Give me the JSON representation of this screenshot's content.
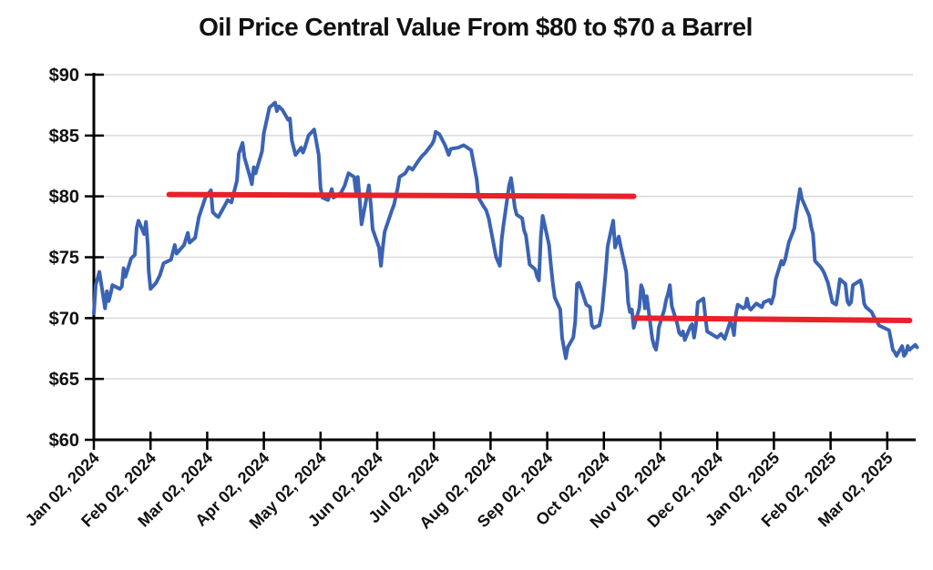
{
  "chart_data": {
    "type": "line",
    "title": "Oil Price Central Value From $80 to $70 a Barrel",
    "xlabel": "",
    "ylabel": "",
    "grid": true,
    "legend": false,
    "colors": {
      "series_blue": "#3b63b4",
      "reference_red": "#e8212b",
      "axis": "#000000",
      "gridline": "#d9d9d9",
      "text": "#111111",
      "background": "#ffffff"
    },
    "y_axis": {
      "min": 60,
      "max": 90,
      "tick_step": 5,
      "tick_labels": [
        "$60",
        "$65",
        "$70",
        "$75",
        "$80",
        "$85",
        "$90"
      ]
    },
    "x_axis": {
      "rotation_deg": -45,
      "tick_labels": [
        "Jan 02, 2024",
        "Feb 02, 2024",
        "Mar 02, 2024",
        "Apr 02, 2024",
        "May 02, 2024",
        "Jun 02, 2024",
        "Jul 02, 2024",
        "Aug 02, 2024",
        "Sep 02, 2024",
        "Oct 02, 2024",
        "Nov 02, 2024",
        "Dec 02, 2024",
        "Jan 02, 2025",
        "Feb 02, 2025",
        "Mar 02, 2025"
      ]
    },
    "reference_lines": [
      {
        "name": "central-value-80",
        "value_start": 80.15,
        "value_end": 80.0,
        "from": "2024-02-12",
        "to": "2024-10-18",
        "color": "#e8212b"
      },
      {
        "name": "central-value-70",
        "value_start": 70.0,
        "value_end": 69.8,
        "from": "2024-10-19",
        "to": "2025-03-14",
        "color": "#e8212b"
      }
    ],
    "series": [
      {
        "name": "oil-price",
        "color": "#3b63b4",
        "points": [
          [
            "2024-01-02",
            70.4
          ],
          [
            "2024-01-03",
            72.7
          ],
          [
            "2024-01-05",
            73.8
          ],
          [
            "2024-01-08",
            70.8
          ],
          [
            "2024-01-09",
            72.2
          ],
          [
            "2024-01-10",
            71.4
          ],
          [
            "2024-01-11",
            72.0
          ],
          [
            "2024-01-12",
            72.7
          ],
          [
            "2024-01-16",
            72.4
          ],
          [
            "2024-01-17",
            72.6
          ],
          [
            "2024-01-18",
            74.1
          ],
          [
            "2024-01-19",
            73.4
          ],
          [
            "2024-01-22",
            74.9
          ],
          [
            "2024-01-24",
            75.2
          ],
          [
            "2024-01-25",
            77.4
          ],
          [
            "2024-01-26",
            78.0
          ],
          [
            "2024-01-29",
            76.9
          ],
          [
            "2024-01-30",
            77.9
          ],
          [
            "2024-01-31",
            75.9
          ],
          [
            "2024-02-01",
            73.9
          ],
          [
            "2024-02-02",
            72.4
          ],
          [
            "2024-02-05",
            72.9
          ],
          [
            "2024-02-07",
            73.5
          ],
          [
            "2024-02-08",
            74.0
          ],
          [
            "2024-02-09",
            74.5
          ],
          [
            "2024-02-13",
            74.8
          ],
          [
            "2024-02-14",
            75.4
          ],
          [
            "2024-02-15",
            76.0
          ],
          [
            "2024-02-16",
            75.3
          ],
          [
            "2024-02-20",
            76.0
          ],
          [
            "2024-02-22",
            77.0
          ],
          [
            "2024-02-23",
            76.2
          ],
          [
            "2024-02-26",
            76.6
          ],
          [
            "2024-02-27",
            77.5
          ],
          [
            "2024-02-28",
            78.3
          ],
          [
            "2024-03-01",
            79.9
          ],
          [
            "2024-03-04",
            80.5
          ],
          [
            "2024-03-05",
            78.7
          ],
          [
            "2024-03-07",
            78.4
          ],
          [
            "2024-03-08",
            78.3
          ],
          [
            "2024-03-12",
            79.4
          ],
          [
            "2024-03-13",
            79.7
          ],
          [
            "2024-03-15",
            79.5
          ],
          [
            "2024-03-18",
            81.3
          ],
          [
            "2024-03-19",
            83.5
          ],
          [
            "2024-03-21",
            84.4
          ],
          [
            "2024-03-22",
            83.2
          ],
          [
            "2024-03-25",
            81.6
          ],
          [
            "2024-03-26",
            81.0
          ],
          [
            "2024-03-27",
            82.4
          ],
          [
            "2024-03-28",
            81.9
          ],
          [
            "2024-04-01",
            83.7
          ],
          [
            "2024-04-02",
            85.2
          ],
          [
            "2024-04-04",
            86.6
          ],
          [
            "2024-04-05",
            87.3
          ],
          [
            "2024-04-08",
            87.7
          ],
          [
            "2024-04-09",
            87.0
          ],
          [
            "2024-04-10",
            87.4
          ],
          [
            "2024-04-12",
            87.1
          ],
          [
            "2024-04-15",
            86.3
          ],
          [
            "2024-04-16",
            86.4
          ],
          [
            "2024-04-17",
            84.6
          ],
          [
            "2024-04-19",
            83.4
          ],
          [
            "2024-04-22",
            84.0
          ],
          [
            "2024-04-23",
            83.6
          ],
          [
            "2024-04-24",
            84.0
          ],
          [
            "2024-04-26",
            85.0
          ],
          [
            "2024-04-29",
            85.5
          ],
          [
            "2024-05-01",
            83.4
          ],
          [
            "2024-05-02",
            80.7
          ],
          [
            "2024-05-03",
            79.9
          ],
          [
            "2024-05-06",
            79.7
          ],
          [
            "2024-05-08",
            80.6
          ],
          [
            "2024-05-09",
            79.9
          ],
          [
            "2024-05-13",
            80.3
          ],
          [
            "2024-05-15",
            80.9
          ],
          [
            "2024-05-16",
            81.4
          ],
          [
            "2024-05-17",
            81.9
          ],
          [
            "2024-05-20",
            81.6
          ],
          [
            "2024-05-21",
            80.4
          ],
          [
            "2024-05-22",
            81.6
          ],
          [
            "2024-05-23",
            79.8
          ],
          [
            "2024-05-24",
            77.7
          ],
          [
            "2024-05-28",
            80.9
          ],
          [
            "2024-05-29",
            79.3
          ],
          [
            "2024-05-30",
            77.3
          ],
          [
            "2024-06-03",
            75.8
          ],
          [
            "2024-06-04",
            74.3
          ],
          [
            "2024-06-05",
            75.8
          ],
          [
            "2024-06-06",
            77.1
          ],
          [
            "2024-06-10",
            78.9
          ],
          [
            "2024-06-11",
            79.3
          ],
          [
            "2024-06-13",
            80.7
          ],
          [
            "2024-06-14",
            81.6
          ],
          [
            "2024-06-17",
            81.9
          ],
          [
            "2024-06-19",
            82.4
          ],
          [
            "2024-06-21",
            82.2
          ],
          [
            "2024-06-24",
            82.9
          ],
          [
            "2024-06-26",
            83.3
          ],
          [
            "2024-06-28",
            83.6
          ],
          [
            "2024-07-01",
            84.3
          ],
          [
            "2024-07-02",
            84.6
          ],
          [
            "2024-07-03",
            85.3
          ],
          [
            "2024-07-05",
            85.1
          ],
          [
            "2024-07-08",
            84.2
          ],
          [
            "2024-07-09",
            83.8
          ],
          [
            "2024-07-10",
            83.4
          ],
          [
            "2024-07-11",
            83.9
          ],
          [
            "2024-07-15",
            84.0
          ],
          [
            "2024-07-18",
            84.2
          ],
          [
            "2024-07-22",
            83.8
          ],
          [
            "2024-07-25",
            81.4
          ],
          [
            "2024-07-26",
            79.9
          ],
          [
            "2024-07-29",
            79.1
          ],
          [
            "2024-07-30",
            78.9
          ],
          [
            "2024-08-01",
            78.2
          ],
          [
            "2024-08-02",
            77.4
          ],
          [
            "2024-08-05",
            75.0
          ],
          [
            "2024-08-07",
            74.3
          ],
          [
            "2024-08-08",
            76.5
          ],
          [
            "2024-08-09",
            77.7
          ],
          [
            "2024-08-12",
            80.9
          ],
          [
            "2024-08-13",
            81.5
          ],
          [
            "2024-08-14",
            80.4
          ],
          [
            "2024-08-15",
            79.1
          ],
          [
            "2024-08-16",
            78.5
          ],
          [
            "2024-08-19",
            78.2
          ],
          [
            "2024-08-20",
            77.2
          ],
          [
            "2024-08-21",
            76.8
          ],
          [
            "2024-08-22",
            75.6
          ],
          [
            "2024-08-23",
            74.4
          ],
          [
            "2024-08-26",
            74.0
          ],
          [
            "2024-08-27",
            73.4
          ],
          [
            "2024-08-28",
            73.1
          ],
          [
            "2024-08-29",
            76.7
          ],
          [
            "2024-08-30",
            78.4
          ],
          [
            "2024-09-03",
            76.0
          ],
          [
            "2024-09-04",
            74.3
          ],
          [
            "2024-09-05",
            72.9
          ],
          [
            "2024-09-06",
            71.7
          ],
          [
            "2024-09-09",
            70.7
          ],
          [
            "2024-09-10",
            68.4
          ],
          [
            "2024-09-12",
            66.7
          ],
          [
            "2024-09-13",
            67.6
          ],
          [
            "2024-09-16",
            68.4
          ],
          [
            "2024-09-17",
            69.7
          ],
          [
            "2024-09-18",
            72.8
          ],
          [
            "2024-09-19",
            72.9
          ],
          [
            "2024-09-20",
            72.5
          ],
          [
            "2024-09-23",
            71.1
          ],
          [
            "2024-09-25",
            70.9
          ],
          [
            "2024-09-26",
            69.4
          ],
          [
            "2024-09-27",
            69.2
          ],
          [
            "2024-09-30",
            69.4
          ],
          [
            "2024-10-01",
            70.6
          ],
          [
            "2024-10-03",
            73.8
          ],
          [
            "2024-10-04",
            75.9
          ],
          [
            "2024-10-07",
            78.0
          ],
          [
            "2024-10-08",
            75.8
          ],
          [
            "2024-10-10",
            76.7
          ],
          [
            "2024-10-11",
            75.9
          ],
          [
            "2024-10-14",
            73.8
          ],
          [
            "2024-10-15",
            71.3
          ],
          [
            "2024-10-16",
            70.5
          ],
          [
            "2024-10-17",
            70.7
          ],
          [
            "2024-10-18",
            69.2
          ],
          [
            "2024-10-21",
            70.8
          ],
          [
            "2024-10-22",
            72.7
          ],
          [
            "2024-10-23",
            72.3
          ],
          [
            "2024-10-24",
            70.8
          ],
          [
            "2024-10-25",
            71.8
          ],
          [
            "2024-10-28",
            68.3
          ],
          [
            "2024-10-29",
            67.7
          ],
          [
            "2024-10-30",
            67.4
          ],
          [
            "2024-10-31",
            68.4
          ],
          [
            "2024-11-01",
            69.2
          ],
          [
            "2024-11-04",
            70.7
          ],
          [
            "2024-11-05",
            71.5
          ],
          [
            "2024-11-06",
            72.0
          ],
          [
            "2024-11-07",
            72.7
          ],
          [
            "2024-11-08",
            71.0
          ],
          [
            "2024-11-11",
            69.5
          ],
          [
            "2024-11-12",
            68.8
          ],
          [
            "2024-11-13",
            68.6
          ],
          [
            "2024-11-14",
            68.9
          ],
          [
            "2024-11-15",
            68.2
          ],
          [
            "2024-11-18",
            69.3
          ],
          [
            "2024-11-19",
            69.5
          ],
          [
            "2024-11-20",
            68.4
          ],
          [
            "2024-11-21",
            69.4
          ],
          [
            "2024-11-22",
            71.3
          ],
          [
            "2024-11-25",
            71.6
          ],
          [
            "2024-11-26",
            70.2
          ],
          [
            "2024-11-27",
            68.9
          ],
          [
            "2024-12-02",
            68.4
          ],
          [
            "2024-12-04",
            68.7
          ],
          [
            "2024-12-06",
            68.3
          ],
          [
            "2024-12-09",
            69.7
          ],
          [
            "2024-12-10",
            69.4
          ],
          [
            "2024-12-11",
            68.6
          ],
          [
            "2024-12-12",
            70.3
          ],
          [
            "2024-12-13",
            71.1
          ],
          [
            "2024-12-16",
            70.8
          ],
          [
            "2024-12-17",
            70.9
          ],
          [
            "2024-12-18",
            71.6
          ],
          [
            "2024-12-19",
            70.9
          ],
          [
            "2024-12-20",
            70.7
          ],
          [
            "2024-12-23",
            71.2
          ],
          [
            "2024-12-26",
            70.9
          ],
          [
            "2024-12-27",
            71.3
          ],
          [
            "2024-12-30",
            71.5
          ],
          [
            "2024-12-31",
            71.2
          ],
          [
            "2025-01-02",
            71.9
          ],
          [
            "2025-01-03",
            73.2
          ],
          [
            "2025-01-06",
            74.7
          ],
          [
            "2025-01-07",
            74.4
          ],
          [
            "2025-01-08",
            74.8
          ],
          [
            "2025-01-10",
            76.2
          ],
          [
            "2025-01-13",
            77.4
          ],
          [
            "2025-01-14",
            78.6
          ],
          [
            "2025-01-15",
            79.6
          ],
          [
            "2025-01-16",
            80.6
          ],
          [
            "2025-01-17",
            79.8
          ],
          [
            "2025-01-21",
            78.4
          ],
          [
            "2025-01-22",
            77.5
          ],
          [
            "2025-01-23",
            76.9
          ],
          [
            "2025-01-24",
            74.7
          ],
          [
            "2025-01-27",
            74.2
          ],
          [
            "2025-01-28",
            74.0
          ],
          [
            "2025-01-29",
            73.7
          ],
          [
            "2025-01-31",
            72.9
          ],
          [
            "2025-02-03",
            71.3
          ],
          [
            "2025-02-05",
            71.1
          ],
          [
            "2025-02-06",
            72.1
          ],
          [
            "2025-02-07",
            73.2
          ],
          [
            "2025-02-10",
            72.8
          ],
          [
            "2025-02-11",
            71.4
          ],
          [
            "2025-02-12",
            71.1
          ],
          [
            "2025-02-13",
            71.3
          ],
          [
            "2025-02-14",
            72.7
          ],
          [
            "2025-02-18",
            73.1
          ],
          [
            "2025-02-19",
            72.5
          ],
          [
            "2025-02-20",
            71.2
          ],
          [
            "2025-02-21",
            70.9
          ],
          [
            "2025-02-24",
            70.5
          ],
          [
            "2025-02-25",
            70.2
          ],
          [
            "2025-02-26",
            69.9
          ],
          [
            "2025-02-27",
            69.7
          ],
          [
            "2025-02-28",
            69.4
          ],
          [
            "2025-03-03",
            69.0
          ],
          [
            "2025-03-04",
            68.2
          ],
          [
            "2025-03-05",
            67.4
          ],
          [
            "2025-03-06",
            67.2
          ],
          [
            "2025-03-07",
            66.9
          ],
          [
            "2025-03-10",
            67.7
          ],
          [
            "2025-03-11",
            66.9
          ],
          [
            "2025-03-12",
            67.1
          ],
          [
            "2025-03-13",
            67.7
          ],
          [
            "2025-03-14",
            67.4
          ],
          [
            "2025-03-17",
            67.8
          ],
          [
            "2025-03-18",
            67.6
          ]
        ]
      }
    ]
  }
}
